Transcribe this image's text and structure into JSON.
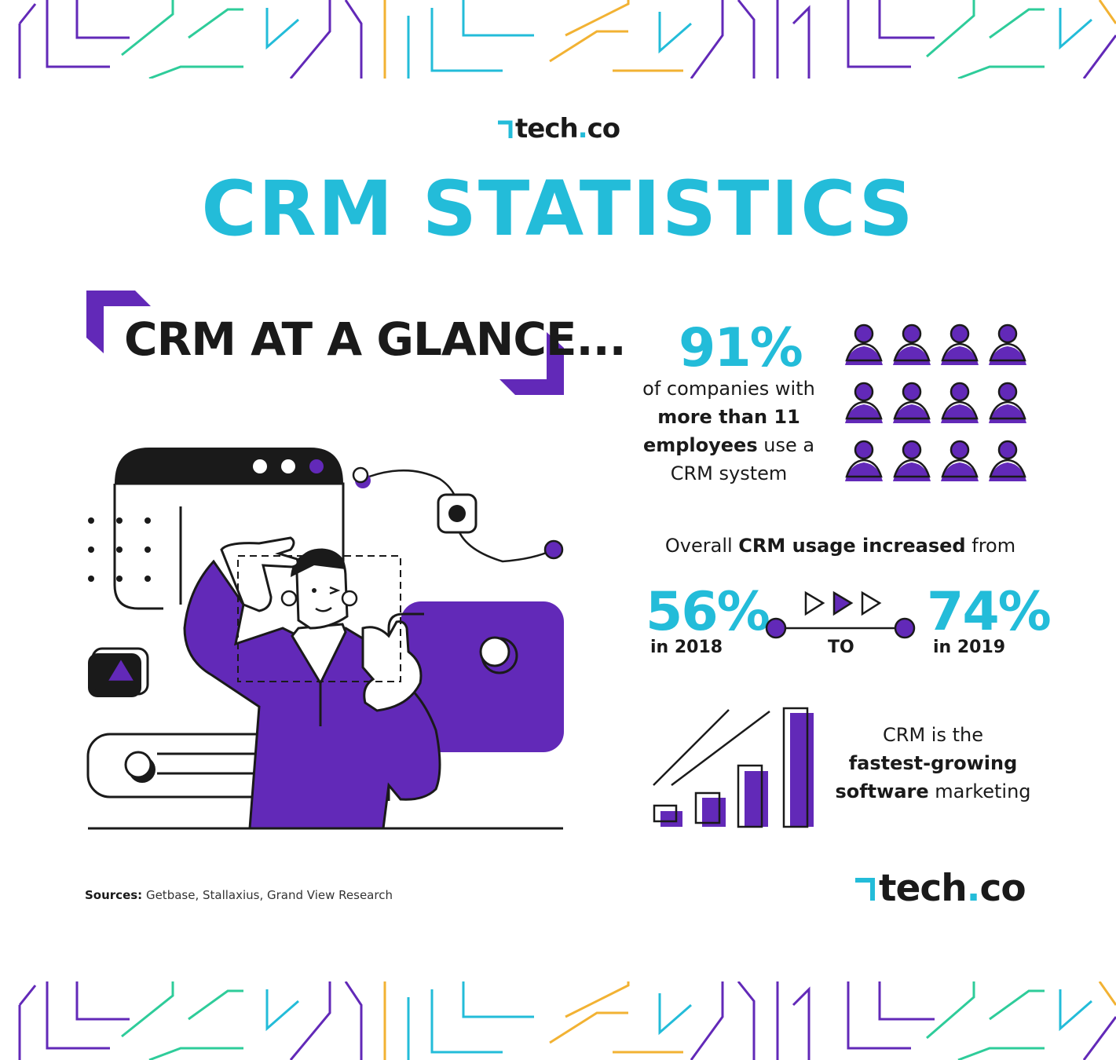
{
  "brand": {
    "name_main": "tech",
    "name_dot": ".",
    "name_tld": "co"
  },
  "title": "CRM STATISTICS",
  "glance_heading": "CRM AT A GLANCE...",
  "stat_companies": {
    "value": "91%",
    "line1": "of companies with",
    "bold1": "more than 11",
    "bold2": "employees",
    "line3": " use a",
    "line4": "CRM system"
  },
  "usage": {
    "prefix": "Overall ",
    "bold": "CRM usage increased",
    "suffix": " from",
    "from_value": "56%",
    "from_year": "in 2018",
    "connector": "TO",
    "to_value": "74%",
    "to_year": "in 2019"
  },
  "growth": {
    "line1": "CRM is the",
    "bold1": "fastest-growing",
    "bold2": "software",
    "line3": " marketing"
  },
  "sources": {
    "label": "Sources:",
    "text": " Getbase, Stallaxius, Grand View Research"
  },
  "colors": {
    "accent_cyan": "#23bcd9",
    "accent_purple": "#6229b8",
    "ink": "#1a1a1a",
    "teal": "#2ecc9a",
    "yellow": "#f2b233"
  },
  "icons": [
    "tech-co-logo-icon",
    "person-icon",
    "play-arrow-icon",
    "bar-growth-icon",
    "window-icon",
    "toggle-icon"
  ]
}
